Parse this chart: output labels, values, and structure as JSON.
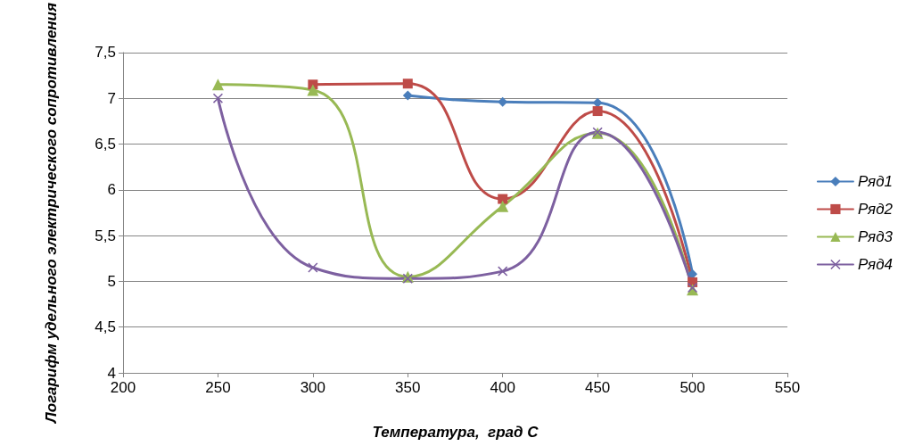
{
  "chart_data": {
    "type": "line",
    "xlabel": "Температура,  град С",
    "ylabel": "Логарифм удельного электрического сопротивления",
    "xlim": [
      200,
      550
    ],
    "xticks": [
      200,
      250,
      300,
      350,
      400,
      450,
      500,
      550
    ],
    "ylim": [
      4,
      7.5
    ],
    "yticks": [
      4,
      {
        "value": 4.5,
        "label": "4,5"
      },
      5,
      {
        "value": 5.5,
        "label": "5,5"
      },
      6,
      {
        "value": 6.5,
        "label": "6,5"
      },
      7,
      {
        "value": 7.5,
        "label": "7,5"
      }
    ],
    "grid": "y",
    "legend": "right",
    "series": [
      {
        "name": "Ряд1",
        "color": "#4a7ebb",
        "marker": "diamond",
        "x": [
          350,
          400,
          450,
          500
        ],
        "values": [
          7.03,
          6.96,
          6.95,
          5.08
        ]
      },
      {
        "name": "Ряд2",
        "color": "#be4b48",
        "marker": "square",
        "x": [
          300,
          350,
          400,
          450,
          500
        ],
        "values": [
          7.15,
          7.16,
          5.9,
          6.86,
          4.99
        ]
      },
      {
        "name": "Ряд3",
        "color": "#98b954",
        "marker": "triangle",
        "x": [
          250,
          300,
          350,
          400,
          450,
          500
        ],
        "values": [
          7.15,
          7.09,
          5.05,
          5.82,
          6.62,
          4.91
        ]
      },
      {
        "name": "Ряд4",
        "color": "#7d60a0",
        "marker": "cross",
        "x": [
          250,
          300,
          350,
          400,
          450,
          500
        ],
        "values": [
          7.0,
          5.15,
          5.03,
          5.11,
          6.63,
          4.93
        ]
      }
    ]
  }
}
